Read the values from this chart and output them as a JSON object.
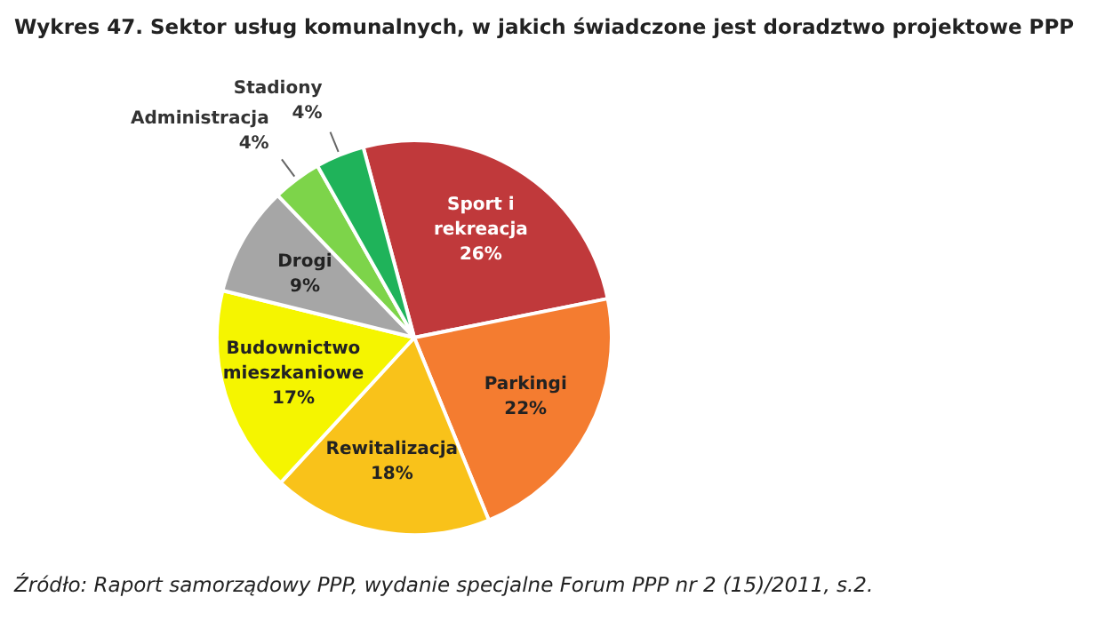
{
  "chart_data": {
    "type": "pie",
    "title": "Wykres 47. Sektor usług komunalnych, w jakich świadczone jest doradztwo projektowe PPP",
    "categories": [
      "Sport i rekreacja",
      "Parkingi",
      "Rewitalizacja",
      "Budownictwo mieszkaniowe",
      "Drogi",
      "Administracja",
      "Stadiony"
    ],
    "values": [
      26,
      22,
      18,
      17,
      9,
      4,
      4
    ],
    "value_labels": [
      "26%",
      "22%",
      "18%",
      "17%",
      "9%",
      "4%",
      "4%"
    ],
    "colors": [
      "#c0393b",
      "#f47c30",
      "#f9c21a",
      "#f5f500",
      "#a6a6a6",
      "#7dd44a",
      "#1fb35a"
    ],
    "legend": false,
    "annotations": [
      "Źródło: Raport samorządowy PPP, wydanie specjalne Forum PPP nr 2 (15)/2011, s.2."
    ]
  }
}
